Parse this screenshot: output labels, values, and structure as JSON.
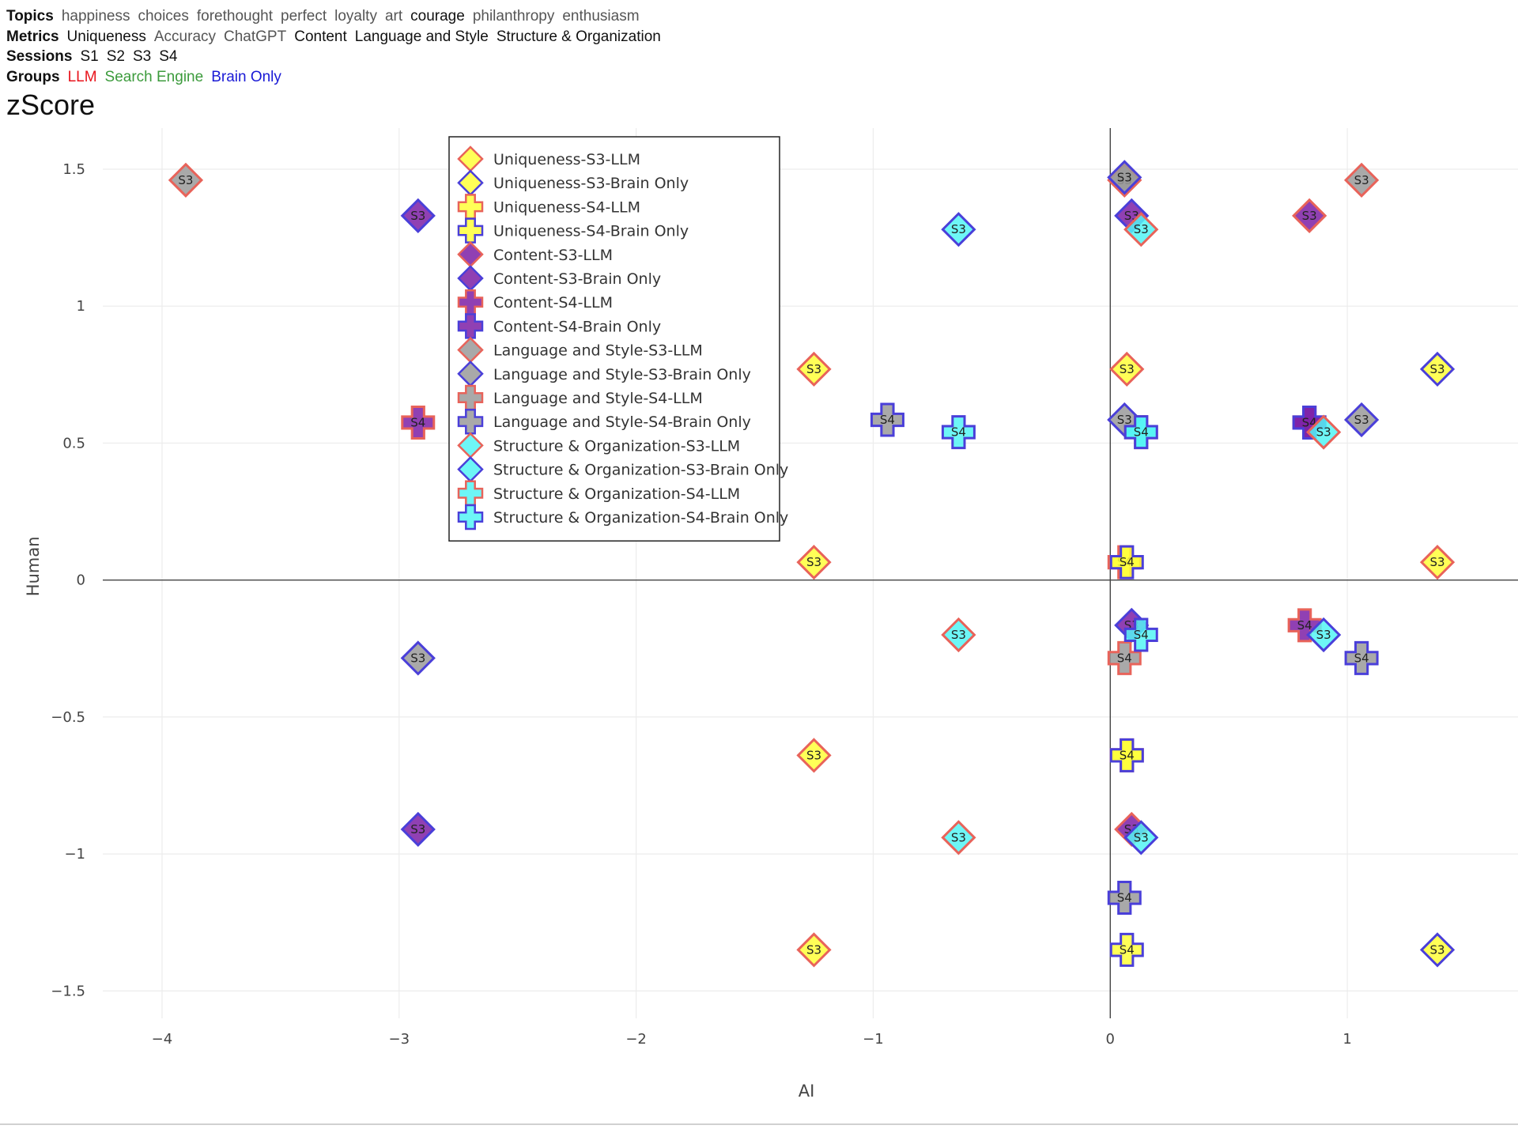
{
  "filters": {
    "topics": {
      "label": "Topics",
      "options": [
        {
          "text": "happiness",
          "active": false
        },
        {
          "text": "choices",
          "active": false
        },
        {
          "text": "forethought",
          "active": false
        },
        {
          "text": "perfect",
          "active": false
        },
        {
          "text": "loyalty",
          "active": false
        },
        {
          "text": "art",
          "active": false
        },
        {
          "text": "courage",
          "active": true
        },
        {
          "text": "philanthropy",
          "active": false
        },
        {
          "text": "enthusiasm",
          "active": false
        }
      ]
    },
    "metrics": {
      "label": "Metrics",
      "options": [
        {
          "text": "Uniqueness",
          "active": true
        },
        {
          "text": "Accuracy",
          "active": false
        },
        {
          "text": "ChatGPT",
          "active": false
        },
        {
          "text": "Content",
          "active": true
        },
        {
          "text": "Language and Style",
          "active": true
        },
        {
          "text": "Structure & Organization",
          "active": true
        }
      ]
    },
    "sessions": {
      "label": "Sessions",
      "options": [
        {
          "text": "S1",
          "active": true
        },
        {
          "text": "S2",
          "active": true
        },
        {
          "text": "S3",
          "active": true
        },
        {
          "text": "S4",
          "active": true
        }
      ]
    },
    "groups": {
      "label": "Groups",
      "options": [
        {
          "text": "LLM",
          "active": true,
          "color": "#e8141c"
        },
        {
          "text": "Search Engine",
          "active": true,
          "color": "#3c9b3c"
        },
        {
          "text": "Brain Only",
          "active": true,
          "color": "#1a1ad6"
        }
      ]
    }
  },
  "chart_data": {
    "type": "scatter",
    "title": "zScore",
    "xlabel": "AI",
    "ylabel": "Human",
    "xlim": [
      -4.25,
      1.72
    ],
    "ylim": [
      -1.6,
      1.65
    ],
    "xticks": [
      {
        "value": -4,
        "label": "−4"
      },
      {
        "value": -3,
        "label": "−3"
      },
      {
        "value": -2,
        "label": "−2"
      },
      {
        "value": -1,
        "label": "−1"
      },
      {
        "value": 0,
        "label": "0"
      },
      {
        "value": 1,
        "label": "1"
      }
    ],
    "yticks": [
      {
        "value": 1.5,
        "label": "1.5"
      },
      {
        "value": 1,
        "label": "1"
      },
      {
        "value": 0.5,
        "label": "0.5"
      },
      {
        "value": 0,
        "label": "0"
      },
      {
        "value": -0.5,
        "label": "−0.5"
      },
      {
        "value": -1,
        "label": "−1"
      },
      {
        "value": -1.5,
        "label": "−1.5"
      }
    ],
    "grid": true,
    "legend_position": "top-left inside plot",
    "group_colors": {
      "LLM": "#e8635a",
      "Brain Only": "#4a3fd9"
    },
    "metric_colors": {
      "Uniqueness": "#ffff3a",
      "Content": "#7d1fa6",
      "Language and Style": "#9a9a9a",
      "Structure & Organization": "#54f4f4"
    },
    "series": [
      {
        "name": "Uniqueness-S3-LLM",
        "metric": "Uniqueness",
        "session": "S3",
        "group": "LLM",
        "symbol": "diamond",
        "label": "S3",
        "points": [
          [
            -1.25,
            0.77
          ],
          [
            0.07,
            0.77
          ],
          [
            -1.25,
            0.065
          ],
          [
            1.38,
            0.065
          ],
          [
            -1.25,
            -0.64
          ],
          [
            -1.25,
            -1.35
          ]
        ]
      },
      {
        "name": "Uniqueness-S3-Brain Only",
        "metric": "Uniqueness",
        "session": "S3",
        "group": "Brain Only",
        "symbol": "diamond",
        "label": "S3",
        "points": [
          [
            1.38,
            0.77
          ],
          [
            1.38,
            -1.35
          ]
        ]
      },
      {
        "name": "Uniqueness-S4-LLM",
        "metric": "Uniqueness",
        "session": "S4",
        "group": "LLM",
        "symbol": "cross",
        "label": "S4",
        "points": [
          [
            0.06,
            0.065
          ],
          [
            0.07,
            -0.64
          ]
        ]
      },
      {
        "name": "Uniqueness-S4-Brain Only",
        "metric": "Uniqueness",
        "session": "S4",
        "group": "Brain Only",
        "symbol": "cross",
        "label": "S4",
        "points": [
          [
            0.07,
            0.065
          ],
          [
            0.07,
            -0.64
          ],
          [
            0.07,
            -1.35
          ]
        ]
      },
      {
        "name": "Content-S3-LLM",
        "metric": "Content",
        "session": "S3",
        "group": "LLM",
        "symbol": "diamond",
        "label": "S3",
        "points": [
          [
            0.84,
            1.33
          ],
          [
            0.09,
            -0.91
          ]
        ]
      },
      {
        "name": "Content-S3-Brain Only",
        "metric": "Content",
        "session": "S3",
        "group": "Brain Only",
        "symbol": "diamond",
        "label": "S3",
        "points": [
          [
            -2.92,
            1.33
          ],
          [
            0.09,
            1.33
          ],
          [
            -2.92,
            -0.91
          ],
          [
            0.09,
            -0.165
          ]
        ]
      },
      {
        "name": "Content-S4-LLM",
        "metric": "Content",
        "session": "S4",
        "group": "LLM",
        "symbol": "cross",
        "label": "S4",
        "points": [
          [
            -2.92,
            0.575
          ],
          [
            0.84,
            0.575
          ],
          [
            0.82,
            -0.165
          ]
        ]
      },
      {
        "name": "Content-S4-Brain Only",
        "metric": "Content",
        "session": "S4",
        "group": "Brain Only",
        "symbol": "cross",
        "label": "S4",
        "points": [
          [
            0.84,
            0.575
          ]
        ]
      },
      {
        "name": "Language and Style-S3-LLM",
        "metric": "Language and Style",
        "session": "S3",
        "group": "LLM",
        "symbol": "diamond",
        "label": "S3",
        "points": [
          [
            -3.9,
            1.46
          ],
          [
            0.06,
            1.46
          ],
          [
            1.06,
            1.46
          ]
        ]
      },
      {
        "name": "Language and Style-S3-Brain Only",
        "metric": "Language and Style",
        "session": "S3",
        "group": "Brain Only",
        "symbol": "diamond",
        "label": "S3",
        "points": [
          [
            0.06,
            1.47
          ],
          [
            0.06,
            0.585
          ],
          [
            1.06,
            0.585
          ],
          [
            -2.92,
            -0.285
          ]
        ]
      },
      {
        "name": "Language and Style-S4-LLM",
        "metric": "Language and Style",
        "session": "S4",
        "group": "LLM",
        "symbol": "cross",
        "label": "S4",
        "points": [
          [
            0.06,
            -0.285
          ]
        ]
      },
      {
        "name": "Language and Style-S4-Brain Only",
        "metric": "Language and Style",
        "session": "S4",
        "group": "Brain Only",
        "symbol": "cross",
        "label": "S4",
        "points": [
          [
            -0.94,
            0.585
          ],
          [
            1.06,
            -0.285
          ],
          [
            0.06,
            -1.16
          ]
        ]
      },
      {
        "name": "Structure & Organization-S3-LLM",
        "metric": "Structure & Organization",
        "session": "S3",
        "group": "LLM",
        "symbol": "diamond",
        "label": "S3",
        "points": [
          [
            0.13,
            1.28
          ],
          [
            0.9,
            0.54
          ],
          [
            -0.64,
            -0.2
          ],
          [
            -0.64,
            -0.94
          ]
        ]
      },
      {
        "name": "Structure & Organization-S3-Brain Only",
        "metric": "Structure & Organization",
        "session": "S3",
        "group": "Brain Only",
        "symbol": "diamond",
        "label": "S3",
        "points": [
          [
            -0.64,
            1.28
          ],
          [
            0.9,
            -0.2
          ],
          [
            0.13,
            -0.94
          ]
        ]
      },
      {
        "name": "Structure & Organization-S4-LLM",
        "metric": "Structure & Organization",
        "session": "S4",
        "group": "LLM",
        "symbol": "cross",
        "label": "S4",
        "points": [
          [
            0.13,
            0.54
          ]
        ]
      },
      {
        "name": "Structure & Organization-S4-Brain Only",
        "metric": "Structure & Organization",
        "session": "S4",
        "group": "Brain Only",
        "symbol": "cross",
        "label": "S4",
        "points": [
          [
            -0.64,
            0.54
          ],
          [
            0.13,
            0.54
          ],
          [
            0.13,
            -0.2
          ]
        ]
      }
    ]
  }
}
